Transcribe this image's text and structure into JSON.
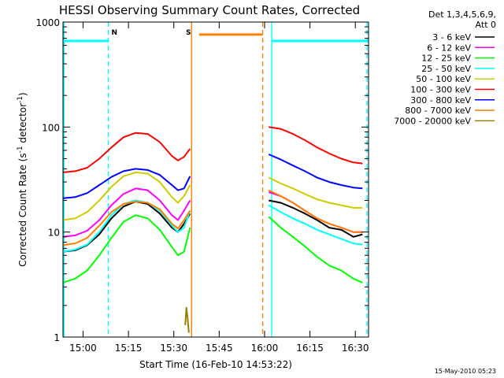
{
  "chart_data": {
    "type": "line",
    "title": "HESSI Observing Summary Count Rates, Corrected",
    "xlabel": "Start Time (16-Feb-10 14:53:22)",
    "ylabel_main": "Corrected Count Rate (s",
    "ylabel_sup1": "-1",
    "ylabel_mid": " detector",
    "ylabel_sup2": "-1",
    "ylabel_end": ")",
    "x_unit": "minutes since 14:53:22",
    "xlim": [
      0,
      101
    ],
    "ylim": [
      1,
      1000
    ],
    "y_scale": "log",
    "x_ticks": [
      {
        "label": "15:00",
        "value": 6.63
      },
      {
        "label": "15:15",
        "value": 21.63
      },
      {
        "label": "15:30",
        "value": 36.63
      },
      {
        "label": "15:45",
        "value": 51.63
      },
      {
        "label": "16:00",
        "value": 66.63
      },
      {
        "label": "16:15",
        "value": 81.63
      },
      {
        "label": "16:30",
        "value": 96.63
      }
    ],
    "y_ticks": [
      {
        "label": "1",
        "value": 1
      },
      {
        "label": "10",
        "value": 10
      },
      {
        "label": "100",
        "value": 100
      },
      {
        "label": "1000",
        "value": 1000
      }
    ],
    "legend": {
      "header1": "Det 1,3,4,5,6,9,",
      "header2": "Att 0",
      "placement": "outside-right"
    },
    "series": [
      {
        "name": "3 - 6 keV",
        "color": "#000000",
        "x": [
          0,
          4,
          8,
          12,
          16,
          20,
          24,
          28,
          32,
          36,
          38,
          40,
          42,
          60,
          62,
          64,
          68,
          72,
          76,
          80,
          84,
          88,
          92,
          96,
          99
        ],
        "y": [
          6.5,
          6.7,
          7.5,
          9.5,
          13.5,
          17.5,
          19.5,
          18.5,
          15,
          11,
          10,
          12,
          15,
          null,
          null,
          null,
          20,
          19,
          17,
          15,
          13,
          11,
          10.5,
          9,
          9.5
        ]
      },
      {
        "name": "6 - 12 keV",
        "color": "#ff00ff",
        "x": [
          0,
          4,
          8,
          12,
          16,
          20,
          24,
          28,
          32,
          36,
          38,
          40,
          42,
          60,
          62,
          64,
          68,
          72,
          76,
          80,
          84,
          88,
          92,
          96,
          99
        ],
        "y": [
          9,
          9.3,
          10.3,
          13,
          18,
          23,
          26,
          25,
          20,
          14.5,
          13,
          16,
          20,
          null,
          null,
          null,
          24,
          22,
          19,
          16,
          13.5,
          12,
          11,
          10,
          10
        ]
      },
      {
        "name": "12 - 25 keV",
        "color": "#00ff00",
        "x": [
          0,
          4,
          8,
          12,
          16,
          20,
          24,
          28,
          32,
          36,
          38,
          40,
          42,
          60,
          62,
          64,
          68,
          72,
          76,
          80,
          84,
          88,
          92,
          96,
          99
        ],
        "y": [
          3.3,
          3.6,
          4.3,
          6,
          8.8,
          12.5,
          14.5,
          13.5,
          10.5,
          7.2,
          6,
          6.5,
          11,
          null,
          null,
          null,
          14,
          11,
          9,
          7.3,
          5.8,
          4.8,
          4.3,
          3.6,
          3.3
        ]
      },
      {
        "name": "25 - 50 keV",
        "color": "#00ffff",
        "x": [
          0,
          4,
          8,
          12,
          16,
          20,
          24,
          28,
          32,
          36,
          38,
          40,
          42,
          60,
          62,
          64,
          68,
          72,
          76,
          80,
          84,
          88,
          92,
          96,
          99
        ],
        "y": [
          6.5,
          6.8,
          7.6,
          10,
          14.5,
          18.5,
          20,
          19,
          16,
          11.5,
          10,
          11,
          16,
          null,
          null,
          null,
          18,
          15.5,
          13.5,
          12,
          10.5,
          9.5,
          8.6,
          7.8,
          7.6
        ]
      },
      {
        "name": "50 - 100 keV",
        "color": "#cccc00",
        "x": [
          0,
          4,
          8,
          12,
          16,
          20,
          24,
          28,
          32,
          36,
          38,
          40,
          42,
          60,
          62,
          64,
          68,
          72,
          76,
          80,
          84,
          88,
          92,
          96,
          99
        ],
        "y": [
          13,
          13.5,
          15.5,
          20,
          27,
          34,
          37,
          36,
          30,
          21.5,
          19,
          22,
          28,
          null,
          null,
          null,
          33,
          29,
          26,
          23,
          20.5,
          19,
          18,
          17,
          17
        ]
      },
      {
        "name": "100 - 300 keV",
        "color": "#ff0000",
        "x": [
          0,
          4,
          8,
          12,
          16,
          20,
          24,
          28,
          32,
          36,
          38,
          40,
          42,
          60,
          62,
          64,
          68,
          72,
          76,
          80,
          84,
          88,
          92,
          96,
          99
        ],
        "y": [
          37,
          38,
          41,
          50,
          64,
          80,
          88,
          86,
          72,
          53,
          48,
          52,
          62,
          null,
          null,
          null,
          100,
          96,
          86,
          75,
          64,
          56,
          50,
          46,
          45
        ]
      },
      {
        "name": "300 - 800 keV",
        "color": "#0000ff",
        "x": [
          0,
          4,
          8,
          12,
          16,
          20,
          24,
          28,
          32,
          36,
          38,
          40,
          42,
          60,
          62,
          64,
          68,
          72,
          76,
          80,
          84,
          88,
          92,
          96,
          99
        ],
        "y": [
          21,
          21.5,
          23.5,
          28,
          33.5,
          38,
          40,
          39,
          35,
          28,
          25,
          26,
          34,
          null,
          null,
          null,
          55,
          49,
          43,
          38,
          33,
          30,
          28,
          26.5,
          26
        ]
      },
      {
        "name": "800 - 7000 keV",
        "color": "#ff8000",
        "x": [
          0,
          4,
          8,
          12,
          16,
          20,
          24,
          28,
          32,
          36,
          38,
          40,
          42,
          60,
          62,
          64,
          68,
          72,
          76,
          80,
          84,
          88,
          92,
          96,
          99
        ],
        "y": [
          7.5,
          7.8,
          8.8,
          11.5,
          15.5,
          18.5,
          19.5,
          19,
          16.5,
          12,
          10.8,
          13,
          16,
          null,
          null,
          null,
          25,
          22,
          19,
          16,
          13.5,
          12,
          11,
          10,
          10
        ]
      },
      {
        "name": "7000 - 20000 keV",
        "color": "#998000",
        "x": [
          40.4,
          40.8,
          41.2,
          41.6
        ],
        "y": [
          1.3,
          1.9,
          1.5,
          1.1
        ]
      }
    ],
    "flag_lines": [
      {
        "label": "",
        "color": "#00ffff",
        "x_start": 0,
        "x_end": 15,
        "y": 660
      },
      {
        "label": "N",
        "color": "#00ffff",
        "label_x": 17
      },
      {
        "label": "",
        "color": "#00ffff",
        "x_start": 69,
        "x_end": 101,
        "y": 660
      },
      {
        "label": "S",
        "color": "#ff8000",
        "label_x": 41.5
      },
      {
        "label": "",
        "color": "#ff8000",
        "x_start": 45,
        "x_end": 66,
        "y": 760
      }
    ],
    "vertical_markers": [
      {
        "x": 0.3,
        "color": "#00ffff",
        "style": "solid"
      },
      {
        "x": 15,
        "color": "#00ffff",
        "style": "dashed"
      },
      {
        "x": 42.5,
        "color": "#ff8000",
        "style": "solid"
      },
      {
        "x": 66,
        "color": "#ff8000",
        "style": "dashed"
      },
      {
        "x": 69,
        "color": "#00ffff",
        "style": "solid"
      },
      {
        "x": 100.5,
        "color": "#00ffff",
        "style": "dashed"
      }
    ]
  },
  "footer": {
    "date": "15-May-2010 05:23"
  }
}
